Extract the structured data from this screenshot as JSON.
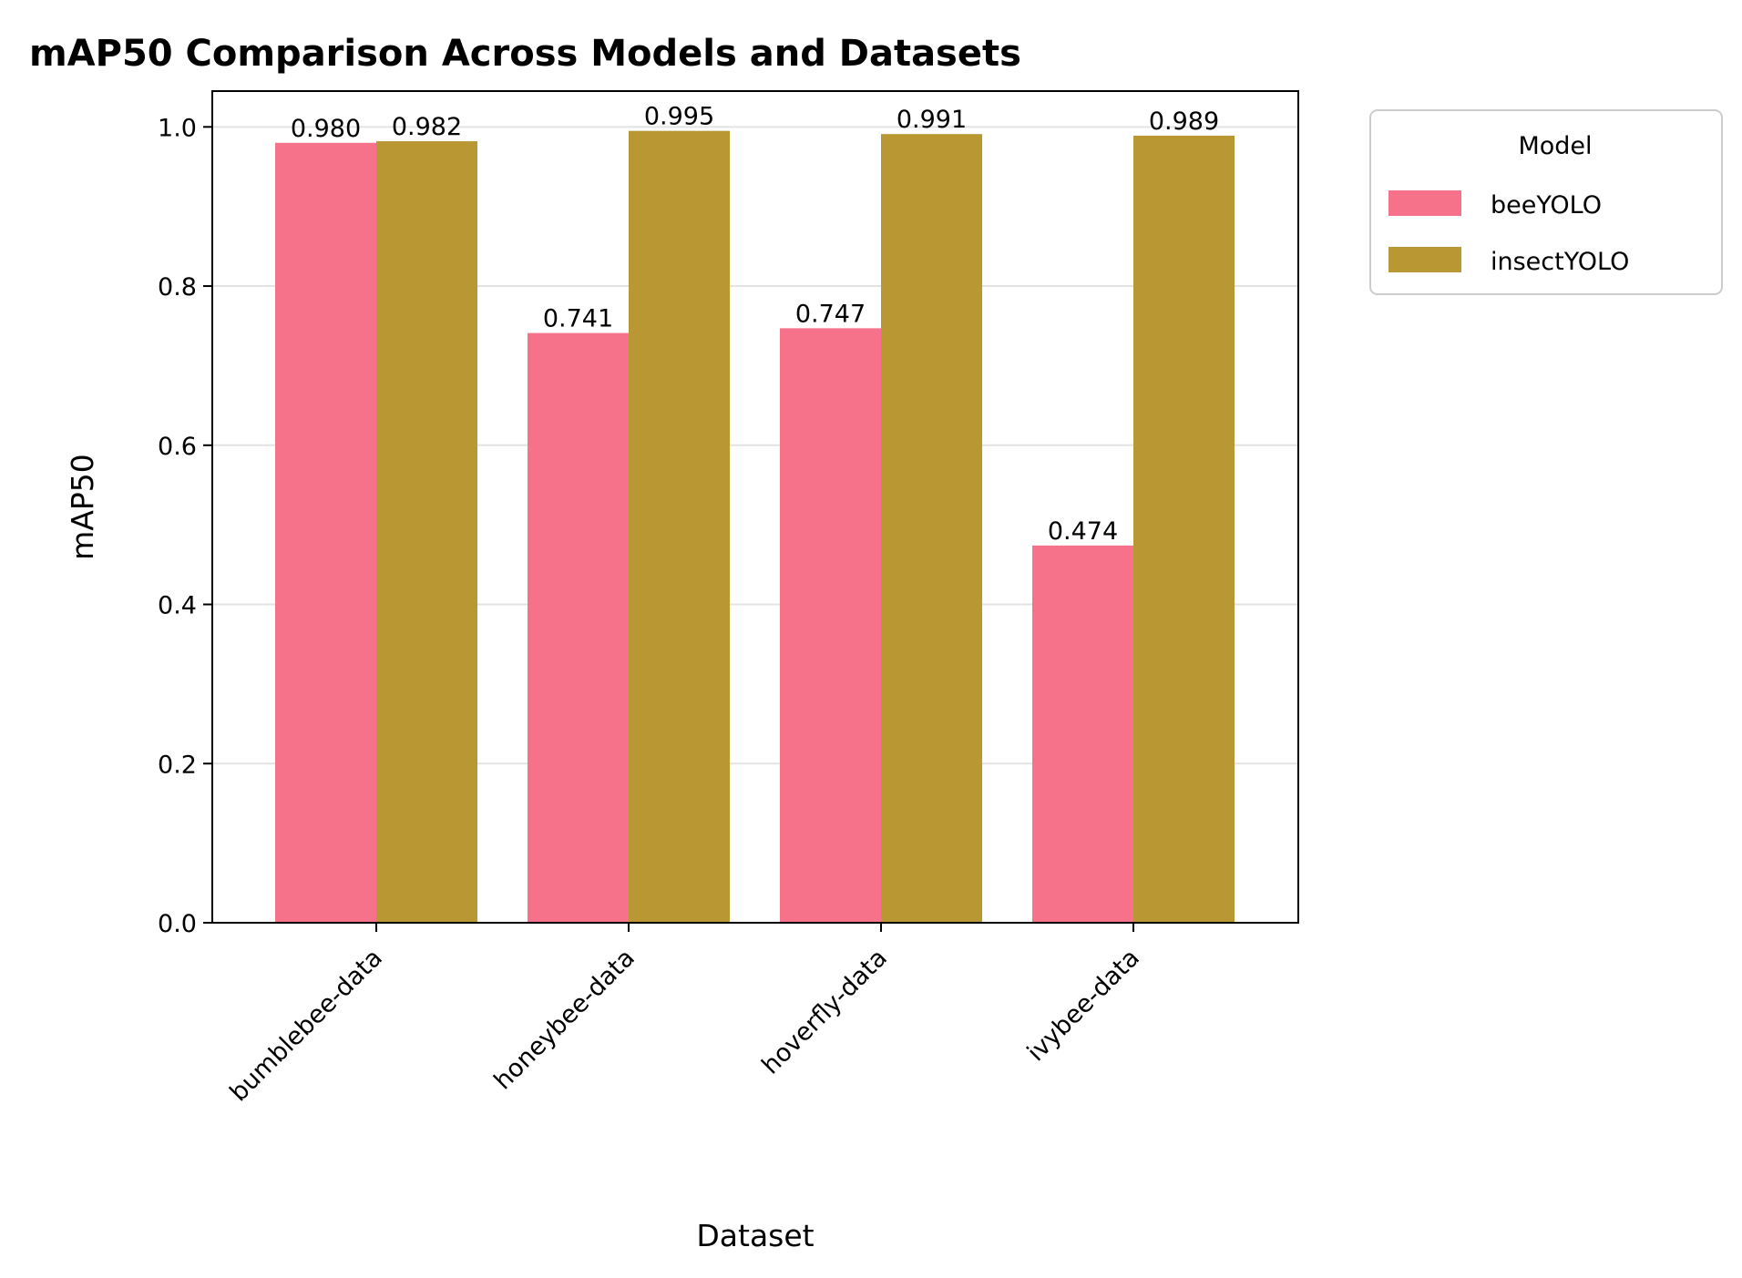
{
  "chart_data": {
    "type": "bar",
    "title": "mAP50 Comparison Across Models and Datasets",
    "xlabel": "Dataset",
    "ylabel": "mAP50",
    "categories": [
      "bumblebee-data",
      "honeybee-data",
      "hoverfly-data",
      "ivybee-data"
    ],
    "series": [
      {
        "name": "beeYOLO",
        "values": [
          0.98,
          0.741,
          0.747,
          0.474
        ],
        "labels": [
          "0.980",
          "0.741",
          "0.747",
          "0.474"
        ],
        "color": "#f5728a"
      },
      {
        "name": "insectYOLO",
        "values": [
          0.982,
          0.995,
          0.991,
          0.989
        ],
        "labels": [
          "0.982",
          "0.995",
          "0.991",
          "0.989"
        ],
        "color": "#b99833"
      }
    ],
    "ylim": [
      0,
      1.045
    ],
    "yticks": [
      0.0,
      0.2,
      0.4,
      0.6,
      0.8,
      1.0
    ],
    "ytick_labels": [
      "0.0",
      "0.2",
      "0.4",
      "0.6",
      "0.8",
      "1.0"
    ],
    "grid": "y",
    "legend": {
      "title": "Model",
      "placement": "outside-top-right"
    }
  }
}
